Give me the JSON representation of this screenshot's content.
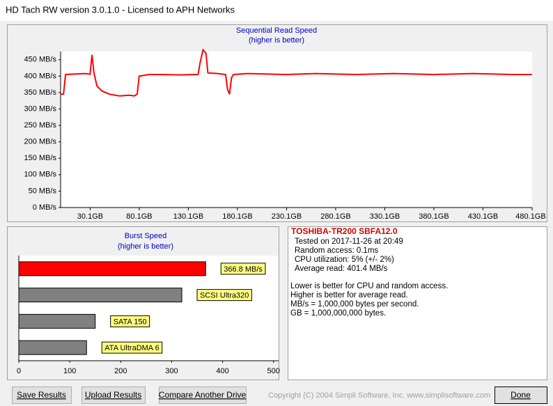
{
  "window": {
    "title": "HD Tach RW version 3.0.1.0 - Licensed to APH Networks"
  },
  "chart_data": [
    {
      "type": "line",
      "title": "Sequential Read Speed",
      "subtitle": "(higher is better)",
      "color": "#ff0000",
      "x": [
        0,
        3,
        5,
        25,
        30,
        32,
        34,
        37,
        42,
        50,
        60,
        70,
        75,
        78,
        80,
        90,
        100,
        120,
        140,
        142,
        145,
        148,
        150,
        160,
        168,
        170,
        172,
        174,
        176,
        190,
        230,
        260,
        300,
        340,
        380,
        420,
        460,
        480
      ],
      "values": [
        345,
        345,
        405,
        408,
        406,
        465,
        410,
        370,
        355,
        345,
        340,
        342,
        340,
        345,
        400,
        405,
        405,
        404,
        405,
        440,
        480,
        470,
        410,
        408,
        405,
        360,
        345,
        395,
        405,
        408,
        405,
        408,
        405,
        408,
        405,
        408,
        405,
        405
      ],
      "xlim": [
        0,
        480.1
      ],
      "xticks": [
        {
          "value": 30.1,
          "label": "30.1GB"
        },
        {
          "value": 80.1,
          "label": "80.1GB"
        },
        {
          "value": 130.1,
          "label": "130.1GB"
        },
        {
          "value": 180.1,
          "label": "180.1GB"
        },
        {
          "value": 230.1,
          "label": "230.1GB"
        },
        {
          "value": 280.1,
          "label": "280.1GB"
        },
        {
          "value": 330.1,
          "label": "330.1GB"
        },
        {
          "value": 380.1,
          "label": "380.1GB"
        },
        {
          "value": 430.1,
          "label": "430.1GB"
        },
        {
          "value": 480.1,
          "label": "480.1GB"
        }
      ],
      "ylim": [
        0,
        475
      ],
      "yticks": [
        {
          "value": 0,
          "label": "0 MB/s"
        },
        {
          "value": 50,
          "label": "50 MB/s"
        },
        {
          "value": 100,
          "label": "100 MB/s"
        },
        {
          "value": 150,
          "label": "150 MB/s"
        },
        {
          "value": 200,
          "label": "200 MB/s"
        },
        {
          "value": 250,
          "label": "250 MB/s"
        },
        {
          "value": 300,
          "label": "300 MB/s"
        },
        {
          "value": 350,
          "label": "350 MB/s"
        },
        {
          "value": 400,
          "label": "400 MB/s"
        },
        {
          "value": 450,
          "label": "450 MB/s"
        }
      ]
    },
    {
      "type": "hbar",
      "title": "Burst Speed",
      "subtitle": "(higher is better)",
      "categories": [
        null,
        "SCSI Ultra320",
        "SATA 150",
        "ATA UltraDMA 6"
      ],
      "values": [
        366.8,
        320,
        150,
        133
      ],
      "value_labels": [
        "366.8 MB/s",
        null,
        null,
        null
      ],
      "colors": [
        "#ff0000",
        "#808080",
        "#808080",
        "#808080"
      ],
      "xlim": [
        0,
        510
      ],
      "xticks": [
        0,
        100,
        200,
        300,
        400,
        500
      ]
    }
  ],
  "info": {
    "drive": "TOSHIBA-TR200 SBFA12.0",
    "lines": [
      "Tested on 2017-11-26 at 20:49",
      "Random access: 0.1ms",
      "CPU utilization: 5% (+/- 2%)",
      "Average read: 401.4 MB/s"
    ],
    "notes": [
      "Lower is better for CPU and random access.",
      "Higher is better for average read.",
      "MB/s = 1,000,000 bytes per second.",
      "GB = 1,000,000,000 bytes."
    ]
  },
  "buttons": [
    "Save Results",
    "Upload Results",
    "Compare Another Drive",
    "Done"
  ],
  "footer": "Copyright (C) 2004 Simpli Software, Inc. www.simplisoftware.com"
}
